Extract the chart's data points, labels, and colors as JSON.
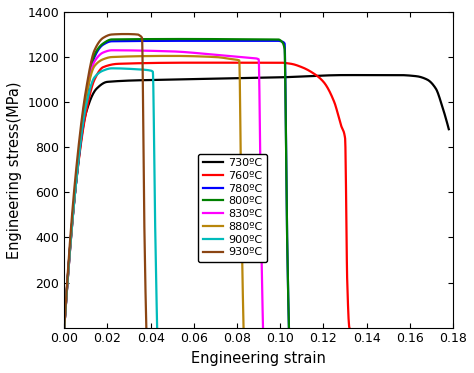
{
  "title": "",
  "xlabel": "Engineering strain",
  "ylabel": "Engineering stress(MPa)",
  "xlim": [
    0,
    0.18
  ],
  "ylim": [
    0,
    1400
  ],
  "xticks": [
    0.0,
    0.02,
    0.04,
    0.06,
    0.08,
    0.1,
    0.12,
    0.14,
    0.16,
    0.18
  ],
  "yticks": [
    200,
    400,
    600,
    800,
    1000,
    1200,
    1400
  ],
  "curves": [
    {
      "label": "730ºC",
      "color": "#000000",
      "points": [
        [
          0,
          0
        ],
        [
          0.005,
          600
        ],
        [
          0.01,
          950
        ],
        [
          0.015,
          1060
        ],
        [
          0.02,
          1090
        ],
        [
          0.05,
          1100
        ],
        [
          0.1,
          1110
        ],
        [
          0.13,
          1120
        ],
        [
          0.155,
          1120
        ],
        [
          0.163,
          1115
        ],
        [
          0.168,
          1100
        ],
        [
          0.172,
          1060
        ],
        [
          0.175,
          980
        ],
        [
          0.178,
          880
        ]
      ],
      "type": "smooth"
    },
    {
      "label": "760ºC",
      "color": "#FF0000",
      "points": [
        [
          0,
          0
        ],
        [
          0.005,
          600
        ],
        [
          0.01,
          950
        ],
        [
          0.014,
          1100
        ],
        [
          0.018,
          1155
        ],
        [
          0.025,
          1170
        ],
        [
          0.06,
          1175
        ],
        [
          0.09,
          1175
        ],
        [
          0.1,
          1175
        ],
        [
          0.105,
          1170
        ],
        [
          0.11,
          1155
        ],
        [
          0.115,
          1130
        ],
        [
          0.12,
          1090
        ],
        [
          0.125,
          1000
        ],
        [
          0.128,
          900
        ],
        [
          0.13,
          840
        ],
        [
          0.131,
          200
        ],
        [
          0.132,
          0
        ]
      ],
      "type": "smooth"
    },
    {
      "label": "780ºC",
      "color": "#0000FF",
      "points": [
        [
          0,
          0
        ],
        [
          0.005,
          600
        ],
        [
          0.01,
          1000
        ],
        [
          0.014,
          1200
        ],
        [
          0.018,
          1255
        ],
        [
          0.022,
          1270
        ],
        [
          0.06,
          1272
        ],
        [
          0.09,
          1272
        ],
        [
          0.099,
          1272
        ],
        [
          0.101,
          1268
        ],
        [
          0.102,
          1260
        ],
        [
          0.103,
          500
        ],
        [
          0.104,
          0
        ]
      ],
      "type": "smooth"
    },
    {
      "label": "800ºC",
      "color": "#008000",
      "points": [
        [
          0,
          0
        ],
        [
          0.005,
          600
        ],
        [
          0.01,
          1020
        ],
        [
          0.014,
          1210
        ],
        [
          0.018,
          1260
        ],
        [
          0.022,
          1278
        ],
        [
          0.06,
          1280
        ],
        [
          0.09,
          1278
        ],
        [
          0.099,
          1278
        ],
        [
          0.101,
          1265
        ],
        [
          0.102,
          1235
        ],
        [
          0.103,
          500
        ],
        [
          0.104,
          0
        ]
      ],
      "type": "smooth"
    },
    {
      "label": "830ºC",
      "color": "#FF00FF",
      "points": [
        [
          0,
          0
        ],
        [
          0.005,
          600
        ],
        [
          0.01,
          1030
        ],
        [
          0.014,
          1180
        ],
        [
          0.018,
          1220
        ],
        [
          0.022,
          1230
        ],
        [
          0.05,
          1225
        ],
        [
          0.07,
          1210
        ],
        [
          0.082,
          1200
        ],
        [
          0.088,
          1195
        ],
        [
          0.09,
          1190
        ],
        [
          0.091,
          500
        ],
        [
          0.092,
          0
        ]
      ],
      "type": "smooth"
    },
    {
      "label": "880ºC",
      "color": "#B8860B",
      "points": [
        [
          0,
          0
        ],
        [
          0.005,
          600
        ],
        [
          0.01,
          1020
        ],
        [
          0.014,
          1160
        ],
        [
          0.018,
          1190
        ],
        [
          0.022,
          1200
        ],
        [
          0.05,
          1205
        ],
        [
          0.07,
          1200
        ],
        [
          0.078,
          1190
        ],
        [
          0.081,
          1185
        ],
        [
          0.082,
          500
        ],
        [
          0.083,
          0
        ]
      ],
      "type": "smooth"
    },
    {
      "label": "900ºC",
      "color": "#00BBBB",
      "points": [
        [
          0,
          0
        ],
        [
          0.005,
          600
        ],
        [
          0.01,
          980
        ],
        [
          0.014,
          1110
        ],
        [
          0.018,
          1140
        ],
        [
          0.022,
          1150
        ],
        [
          0.035,
          1145
        ],
        [
          0.04,
          1140
        ],
        [
          0.041,
          1135
        ],
        [
          0.042,
          500
        ],
        [
          0.043,
          0
        ]
      ],
      "type": "smooth"
    },
    {
      "label": "930ºC",
      "color": "#8B4513",
      "points": [
        [
          0,
          0
        ],
        [
          0.005,
          650
        ],
        [
          0.01,
          1050
        ],
        [
          0.014,
          1230
        ],
        [
          0.018,
          1285
        ],
        [
          0.022,
          1300
        ],
        [
          0.028,
          1302
        ],
        [
          0.034,
          1300
        ],
        [
          0.035,
          1295
        ],
        [
          0.036,
          1285
        ],
        [
          0.037,
          500
        ],
        [
          0.038,
          0
        ]
      ],
      "type": "smooth"
    }
  ],
  "linewidth": 1.6
}
